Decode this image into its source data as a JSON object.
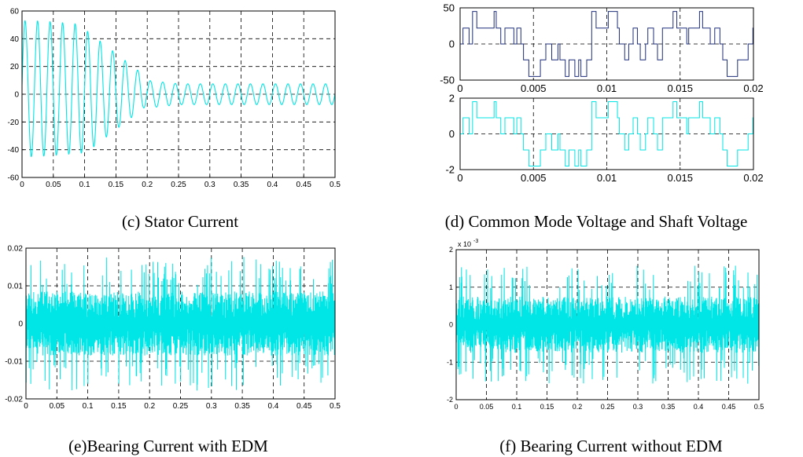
{
  "chart_data": [
    {
      "id": "c",
      "type": "line",
      "caption": "(c) Stator Current",
      "xlim": [
        0,
        0.5
      ],
      "ylim": [
        -60,
        60
      ],
      "xticks": [
        "0",
        "0.05",
        "0.1",
        "0.15",
        "0.2",
        "0.25",
        "0.3",
        "0.35",
        "0.4",
        "0.45",
        "0.5"
      ],
      "yticks": [
        "60",
        "40",
        "20",
        "0",
        "-20",
        "-40",
        "-60"
      ],
      "grid": true,
      "series": [
        {
          "color": "#00e5e5",
          "description_points": {
            "t": [
              0.0,
              0.008,
              0.018,
              0.028,
              0.038,
              0.048,
              0.058,
              0.068,
              0.078,
              0.088,
              0.098,
              0.108,
              0.118,
              0.128,
              0.138,
              0.148,
              0.158,
              0.168,
              0.178,
              0.188,
              0.2,
              0.25,
              0.3,
              0.35,
              0.4,
              0.45,
              0.5
            ],
            "value": [
              0,
              57,
              -43,
              48,
              -44,
              51,
              -42,
              51,
              -43,
              51,
              -40,
              41,
              -45,
              41,
              -38,
              36,
              -31,
              26,
              -21,
              16,
              -10,
              8,
              -8,
              7,
              -7,
              7,
              -6
            ]
          },
          "frequency_hz": 50
        }
      ]
    },
    {
      "id": "d",
      "type": "line",
      "caption": "(d) Common Mode Voltage and Shaft Voltage",
      "subplots": [
        {
          "xlim": [
            0,
            0.02
          ],
          "ylim": [
            -50,
            50
          ],
          "xticks": [
            "0",
            "0.005",
            "0.01",
            "0.015",
            "0.02"
          ],
          "yticks": [
            "50",
            "0",
            "-50"
          ],
          "grid": true,
          "levels": [
            -45,
            -22,
            0,
            22,
            45
          ],
          "series": [
            {
              "color": "#1f2f7a"
            }
          ]
        },
        {
          "xlim": [
            0,
            0.02
          ],
          "ylim": [
            -2,
            2
          ],
          "xticks": [
            "0",
            "0.005",
            "0.01",
            "0.015",
            "0.02"
          ],
          "yticks": [
            "2",
            "0",
            "-2"
          ],
          "grid": true,
          "levels": [
            -1.8,
            -0.9,
            0,
            0.9,
            1.8
          ],
          "series": [
            {
              "color": "#00e5e5"
            }
          ]
        }
      ]
    },
    {
      "id": "e",
      "type": "line",
      "caption": "(e)Bearing Current with EDM",
      "xlim": [
        0,
        0.5
      ],
      "ylim": [
        -0.02,
        0.02
      ],
      "xticks": [
        "0",
        "0.05",
        "0.1",
        "0.15",
        "0.2",
        "0.25",
        "0.3",
        "0.35",
        "0.4",
        "0.45",
        "0.5"
      ],
      "yticks": [
        "0.02",
        "0.01",
        "0",
        "-0.01",
        "-0.02"
      ],
      "grid": true,
      "series": [
        {
          "color": "#00e5e5",
          "peak_max": 0.019,
          "peak_min": -0.0185
        }
      ]
    },
    {
      "id": "f",
      "type": "line",
      "caption": "(f) Bearing Current without EDM",
      "xlim": [
        0,
        0.5
      ],
      "ylim": [
        -2,
        2
      ],
      "multiplier": "x 10",
      "multiplier_exp": "-3",
      "xticks": [
        "0",
        "0.05",
        "0.1",
        "0.15",
        "0.2",
        "0.25",
        "0.3",
        "0.35",
        "0.4",
        "0.45",
        "0.5"
      ],
      "yticks": [
        "2",
        "1",
        "0",
        "-1",
        "-2"
      ],
      "grid": true,
      "series": [
        {
          "color": "#00e5e5",
          "peak_max": 1.8,
          "peak_min": -1.85
        }
      ]
    }
  ]
}
